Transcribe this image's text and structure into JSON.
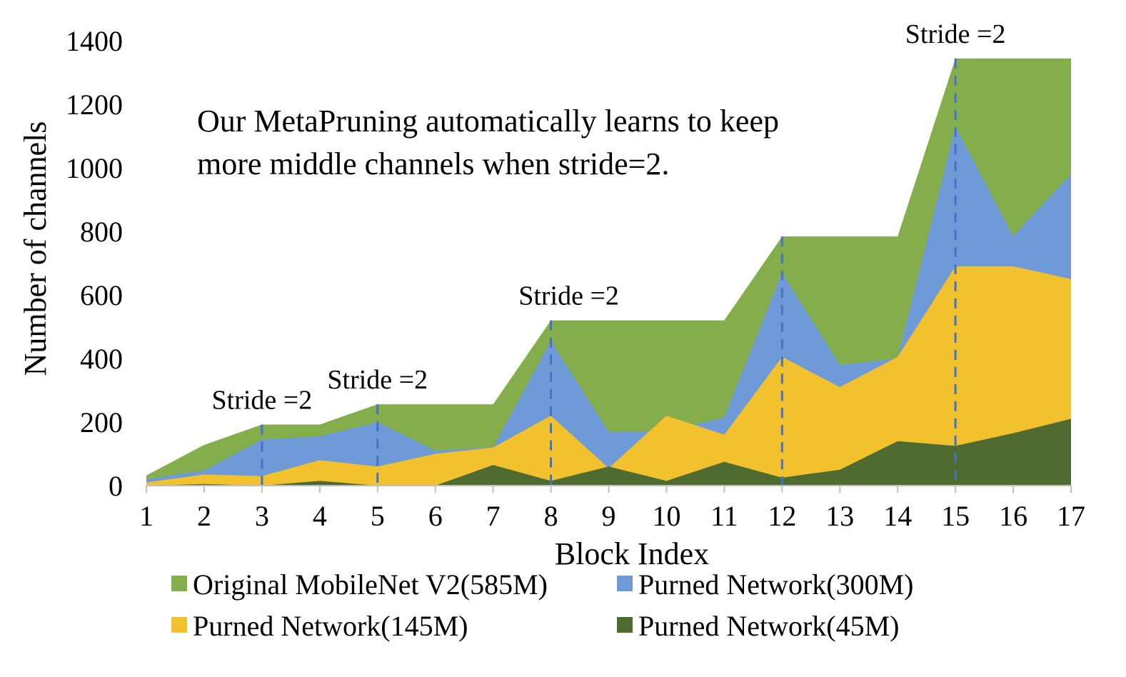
{
  "chart_data": {
    "type": "area",
    "xlabel": "Block Index",
    "ylabel": "Number of channels",
    "ylim": [
      0,
      1400
    ],
    "yticks": [
      0,
      200,
      400,
      600,
      800,
      1000,
      1200,
      1400
    ],
    "x": [
      1,
      2,
      3,
      4,
      5,
      6,
      7,
      8,
      9,
      10,
      11,
      12,
      13,
      14,
      15,
      16,
      17
    ],
    "legend_position": "bottom",
    "grid": false,
    "series": [
      {
        "name": "Original MobileNet V2(585M)",
        "color": "#84ad4c",
        "values": [
          32,
          128,
          192,
          192,
          256,
          256,
          256,
          520,
          520,
          520,
          520,
          784,
          784,
          784,
          1344,
          1344,
          1344
        ]
      },
      {
        "name": "Purned Network(300M)",
        "color": "#6e9ad8",
        "values": [
          20,
          48,
          145,
          155,
          200,
          110,
          120,
          455,
          170,
          170,
          215,
          670,
          380,
          400,
          1130,
          785,
          980
        ]
      },
      {
        "name": "Purned Network(145M)",
        "color": "#f2c12e",
        "values": [
          10,
          35,
          30,
          80,
          60,
          100,
          120,
          220,
          55,
          220,
          160,
          405,
          310,
          405,
          690,
          690,
          650
        ]
      },
      {
        "name": "Purned Network(45M)",
        "color": "#4f6b30",
        "values": [
          0,
          5,
          0,
          15,
          0,
          0,
          65,
          15,
          60,
          15,
          75,
          25,
          50,
          140,
          125,
          165,
          210
        ]
      }
    ],
    "stride_markers": [
      {
        "x": 3,
        "label": "Stride =2"
      },
      {
        "x": 5,
        "label": "Stride =2"
      },
      {
        "x": 8,
        "label": "Stride =2"
      },
      {
        "x": 12,
        "label": ""
      },
      {
        "x": 15,
        "label": "Stride =2"
      }
    ],
    "stride_line_color": "#4472c4",
    "annotation": [
      "Our MetaPruning automatically learns to keep",
      "more middle channels when stride=2."
    ]
  }
}
